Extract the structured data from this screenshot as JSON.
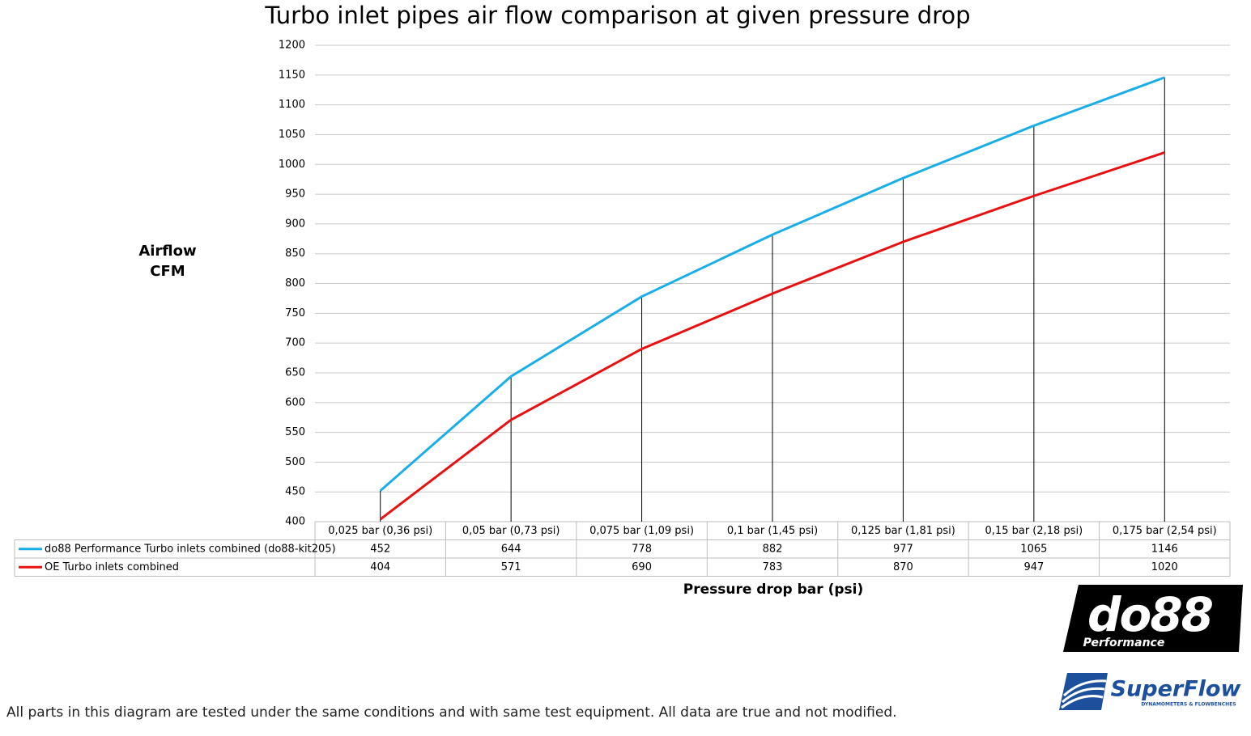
{
  "chart_data": {
    "type": "line",
    "title": "Turbo inlet pipes air flow comparison at given pressure drop",
    "y_label": "Airflow CFM",
    "x_label": "Pressure drop bar (psi)",
    "categories": [
      "0,025 bar (0,36 psi)",
      "0,05 bar (0,73 psi)",
      "0,075 bar (1,09 psi)",
      "0,1 bar (1,45 psi)",
      "0,125 bar (1,81 psi)",
      "0,15 bar (2,18 psi)",
      "0,175 bar (2,54 psi)"
    ],
    "series": [
      {
        "name": "do88 Performance Turbo inlets combined (do88-kit205)",
        "color": "#1aaee8",
        "values": [
          452,
          644,
          778,
          882,
          977,
          1065,
          1146
        ]
      },
      {
        "name": "OE Turbo inlets combined",
        "color": "#e81010",
        "values": [
          404,
          571,
          690,
          783,
          870,
          947,
          1020
        ]
      }
    ],
    "ylim": [
      400,
      1200
    ],
    "yticks": [
      400,
      450,
      500,
      550,
      600,
      650,
      700,
      750,
      800,
      850,
      900,
      950,
      1000,
      1050,
      1100,
      1150,
      1200
    ],
    "grid": true,
    "drop_lines": true,
    "data_table": true
  },
  "footnote": "All parts in this diagram are tested under the same conditions and with same test equipment. All data are true and not modified.",
  "logos": {
    "do88": "do88",
    "do88_sub": "Performance",
    "superflow": "SuperFlow",
    "superflow_sub": "DYNAMOMETERS & FLOWBENCHES"
  }
}
